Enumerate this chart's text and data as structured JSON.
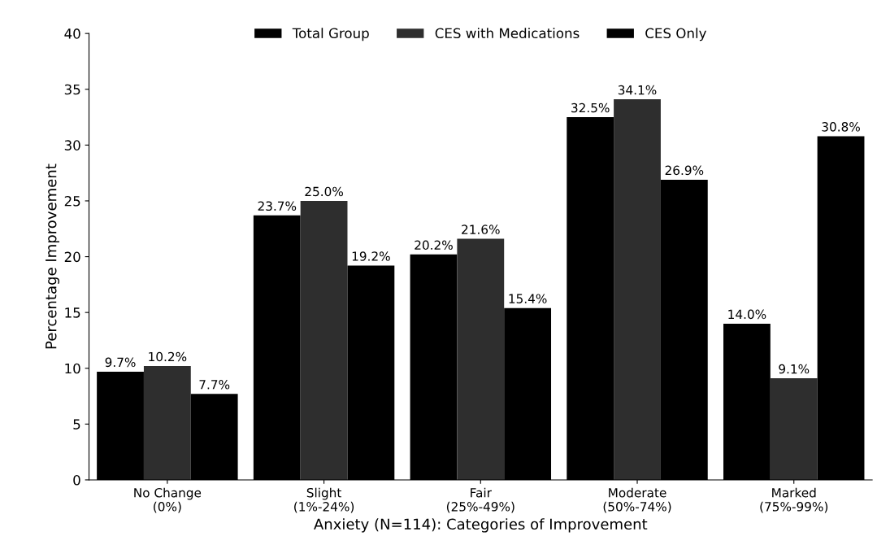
{
  "chart_data": {
    "type": "bar",
    "xlabel": "Anxiety (N=114): Categories of Improvement",
    "ylabel": "Percentage Improvement",
    "categories": [
      "No Change\n(0%)",
      "Slight\n(1%-24%)",
      "Fair\n(25%-49%)",
      "Moderate\n(50%-74%)",
      "Marked\n(75%-99%)"
    ],
    "series": [
      {
        "name": "Total Group",
        "color": "#000000",
        "values": [
          9.7,
          23.7,
          20.2,
          32.5,
          14.0
        ],
        "value_labels": [
          "9.7%",
          "23.7%",
          "20.2%",
          "32.5%",
          "14.0%"
        ]
      },
      {
        "name": "CES with Medications",
        "color": "#2e2e2e",
        "values": [
          10.2,
          25.0,
          21.6,
          34.1,
          9.1
        ],
        "value_labels": [
          "10.2%",
          "25.0%",
          "21.6%",
          "34.1%",
          "9.1%"
        ]
      },
      {
        "name": "CES Only",
        "color": "#000000",
        "values": [
          7.7,
          19.2,
          15.4,
          26.9,
          30.8
        ],
        "value_labels": [
          "7.7%",
          "19.2%",
          "15.4%",
          "26.9%",
          "30.8%"
        ]
      }
    ],
    "ylim": [
      0,
      40
    ],
    "yticks": [
      0,
      5,
      10,
      15,
      20,
      25,
      30,
      35,
      40
    ],
    "grid": false,
    "legend": "top"
  }
}
